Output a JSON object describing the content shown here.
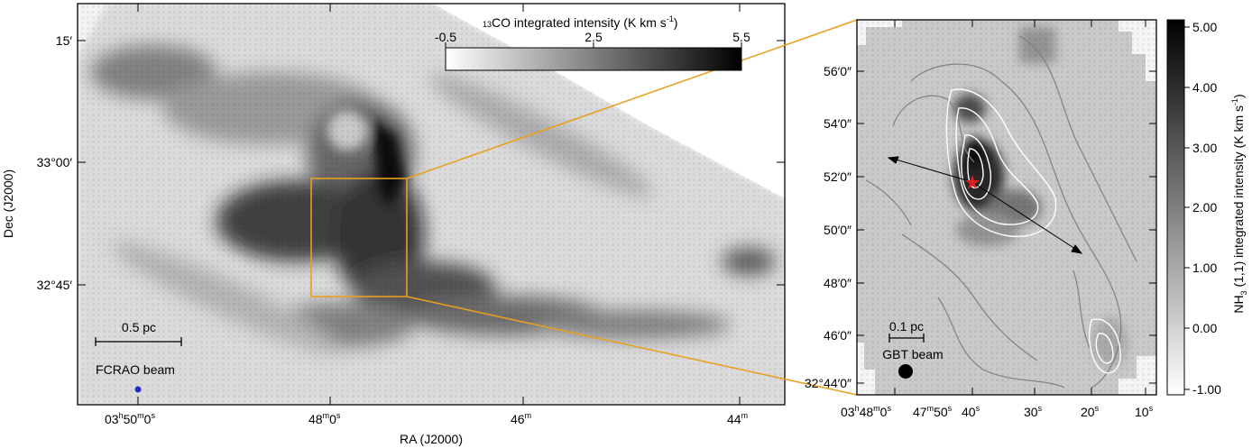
{
  "chart_data": [
    {
      "type": "heatmap",
      "panel": "left",
      "xlabel": "RA (J2000)",
      "ylabel": "Dec (J2000)",
      "x_ticks": [
        {
          "h": "03",
          "m": "50",
          "s": "0",
          "pre": "",
          "suf": "s"
        },
        {
          "pre": "48",
          "m_unit": "m",
          "val": "0",
          "suf": "s"
        },
        {
          "pre": "46",
          "m_unit": "m"
        },
        {
          "pre": "44",
          "m_unit": "m"
        }
      ],
      "y_ticks": [
        "15′",
        "33°00′",
        "32°45′"
      ],
      "colorbar": {
        "label_iso": "13",
        "label_main": "CO integrated intensity (K km s",
        "label_exp": "-1",
        "label_close": ")",
        "ticks": [
          "-0.5",
          "2.5",
          "5.5"
        ],
        "range": [
          -0.5,
          5.5
        ]
      },
      "scale_bar": "0.5 pc",
      "beam_label": "FCRAO beam",
      "beam_color": "#2030c0",
      "zoom_box_color": "#e8a020"
    },
    {
      "type": "heatmap",
      "panel": "right",
      "x_ticks": [
        "03h48m0s",
        "47m50s",
        "40s",
        "30s",
        "20s",
        "10s"
      ],
      "y_ticks": [
        "56′0″",
        "54′0″",
        "52′0″",
        "50′0″",
        "48′0″",
        "46′0″",
        "32°44′0″"
      ],
      "colorbar": {
        "label_pre": "NH",
        "label_sub": "3",
        "label_post": " (1,1) integrated intensity (K km s",
        "label_exp": "-1",
        "label_close": ")",
        "ticks": [
          "5.00",
          "4.00",
          "3.00",
          "2.00",
          "1.00",
          "0.00",
          "-1.00"
        ],
        "range": [
          -1.0,
          5.0
        ]
      },
      "scale_bar": "0.1 pc",
      "beam_label": "GBT beam",
      "source_marker_color": "#e02020"
    }
  ]
}
